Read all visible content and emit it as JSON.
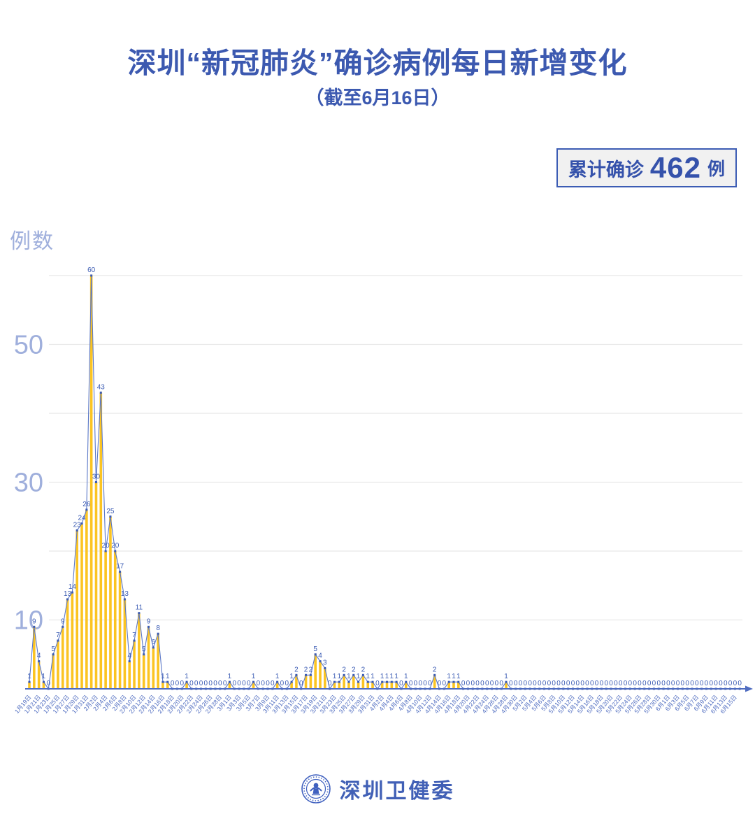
{
  "title": "深圳“新冠肺炎”确诊病例每日新增变化",
  "subtitle": "（截至6月16日）",
  "badge": {
    "prefix": "累计确诊",
    "value": "462",
    "unit": "例"
  },
  "footer": {
    "org": "深圳卫健委",
    "logo": "shenzhen-health-commission-emblem"
  },
  "colors": {
    "title_blue": "#3c59b0",
    "label_blue": "#3c5cb4",
    "axis_light_blue": "#9fafdc",
    "bar_yellow": "#fbc422",
    "line_blue": "#5b78c7",
    "grid_gray": "#e8e8e8",
    "axis_line_blue": "#4f6cc0",
    "badge_bg": "#f1f1f1"
  },
  "chart_data": {
    "type": "line+bar",
    "title": "深圳“新冠肺炎”确诊病例每日新增变化",
    "subtitle": "截至6月16日",
    "ylabel": "例数",
    "ylim": [
      0,
      63
    ],
    "yticks_labeled": [
      10,
      30,
      50
    ],
    "gridline_values": [
      10,
      20,
      30,
      40,
      50,
      60
    ],
    "grid": true,
    "legend": false,
    "x_label_every": 2,
    "cumulative_total": 462,
    "categories": [
      "1月19日",
      "1月20日",
      "1月21日",
      "1月22日",
      "1月23日",
      "1月24日",
      "1月25日",
      "1月26日",
      "1月27日",
      "1月28日",
      "1月29日",
      "1月30日",
      "1月31日",
      "2月1日",
      "2月2日",
      "2月3日",
      "2月4日",
      "2月5日",
      "2月6日",
      "2月7日",
      "2月8日",
      "2月9日",
      "2月10日",
      "2月11日",
      "2月12日",
      "2月13日",
      "2月14日",
      "2月15日",
      "2月16日",
      "2月17日",
      "2月18日",
      "2月19日",
      "2月20日",
      "2月21日",
      "2月22日",
      "2月23日",
      "2月24日",
      "2月25日",
      "2月26日",
      "2月27日",
      "2月28日",
      "2月29日",
      "3月1日",
      "3月2日",
      "3月3日",
      "3月4日",
      "3月5日",
      "3月6日",
      "3月7日",
      "3月8日",
      "3月9日",
      "3月10日",
      "3月11日",
      "3月12日",
      "3月13日",
      "3月14日",
      "3月15日",
      "3月16日",
      "3月17日",
      "3月18日",
      "3月19日",
      "3月20日",
      "3月21日",
      "3月22日",
      "3月23日",
      "3月24日",
      "3月25日",
      "3月26日",
      "3月27日",
      "3月28日",
      "3月29日",
      "3月30日",
      "3月31日",
      "4月1日",
      "4月2日",
      "4月3日",
      "4月4日",
      "4月5日",
      "4月6日",
      "4月7日",
      "4月8日",
      "4月9日",
      "4月10日",
      "4月11日",
      "4月12日",
      "4月13日",
      "4月14日",
      "4月15日",
      "4月16日",
      "4月17日",
      "4月18日",
      "4月19日",
      "4月20日",
      "4月21日",
      "4月22日",
      "4月23日",
      "4月24日",
      "4月25日",
      "4月26日",
      "4月27日",
      "4月28日",
      "4月29日",
      "4月30日",
      "5月1日",
      "5月2日",
      "5月3日",
      "5月4日",
      "5月5日",
      "5月6日",
      "5月7日",
      "5月8日",
      "5月9日",
      "5月10日",
      "5月11日",
      "5月12日",
      "5月13日",
      "5月14日",
      "5月15日",
      "5月16日",
      "5月17日",
      "5月18日",
      "5月19日",
      "5月20日",
      "5月21日",
      "5月22日",
      "5月23日",
      "5月24日",
      "5月25日",
      "5月26日",
      "5月27日",
      "5月28日",
      "5月29日",
      "5月30日",
      "5月31日",
      "6月1日",
      "6月2日",
      "6月3日",
      "6月4日",
      "6月5日",
      "6月6日",
      "6月7日",
      "6月8日",
      "6月9日",
      "6月10日",
      "6月11日",
      "6月12日",
      "6月13日",
      "6月14日",
      "6月15日",
      "6月16日"
    ],
    "values": [
      1,
      9,
      4,
      1,
      0,
      5,
      7,
      9,
      13,
      14,
      23,
      24,
      26,
      60,
      30,
      43,
      20,
      25,
      20,
      17,
      13,
      4,
      7,
      11,
      5,
      9,
      6,
      8,
      1,
      1,
      0,
      0,
      0,
      1,
      0,
      0,
      0,
      0,
      0,
      0,
      0,
      0,
      1,
      0,
      0,
      0,
      0,
      1,
      0,
      0,
      0,
      0,
      1,
      0,
      0,
      1,
      2,
      0,
      2,
      2,
      5,
      4,
      3,
      0,
      1,
      1,
      2,
      1,
      2,
      1,
      2,
      1,
      1,
      0,
      1,
      1,
      1,
      1,
      0,
      1,
      0,
      0,
      0,
      0,
      0,
      2,
      0,
      0,
      1,
      1,
      1,
      0,
      0,
      0,
      0,
      0,
      0,
      0,
      0,
      0,
      1,
      0,
      0,
      0,
      0,
      0,
      0,
      0,
      0,
      0,
      0,
      0,
      0,
      0,
      0,
      0,
      0,
      0,
      0,
      0,
      0,
      0,
      0,
      0,
      0,
      0,
      0,
      0,
      0,
      0,
      0,
      0,
      0,
      0,
      0,
      0,
      0,
      0,
      0,
      0,
      0,
      0,
      0,
      0,
      0,
      0,
      0,
      0,
      0,
      0
    ]
  }
}
